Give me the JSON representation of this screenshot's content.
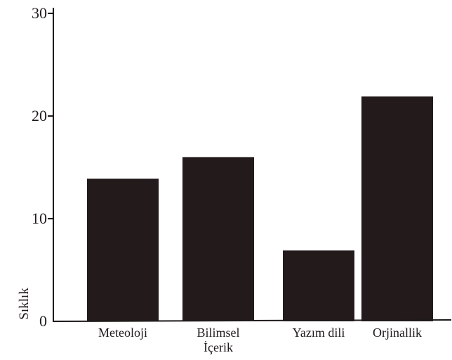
{
  "chart_data": {
    "type": "bar",
    "categories": [
      [
        "Meteoloji"
      ],
      [
        "Bilimsel",
        "İçerik"
      ],
      [
        "Yazım dili"
      ],
      [
        "Orjinallik"
      ]
    ],
    "values": [
      13.9,
      16.0,
      6.9,
      21.9
    ],
    "title": "",
    "xlabel": "",
    "ylabel": "Sıklık",
    "ylim": [
      0,
      30
    ],
    "yticks": [
      "0",
      "10",
      "20",
      "30"
    ],
    "grid": false,
    "legend": "none",
    "colors": {
      "bar": "#231b1b",
      "axis": "#1f1a1a"
    }
  }
}
